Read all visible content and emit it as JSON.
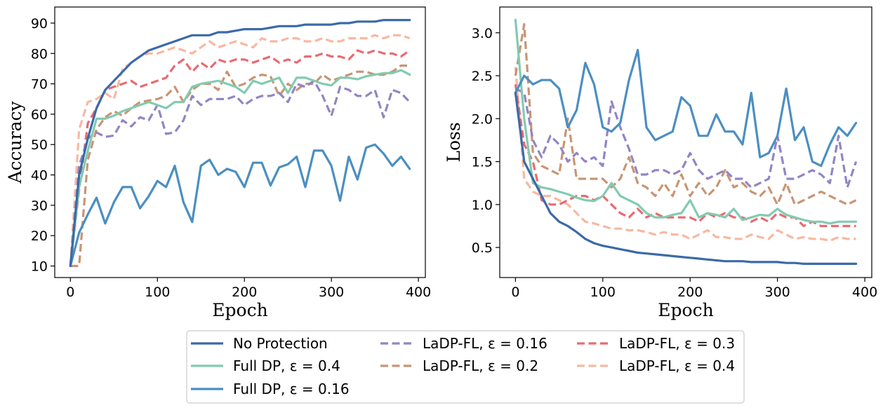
{
  "colors": {
    "no_protection": "#3b6aa8",
    "full_dp_04": "#82cbb1",
    "full_dp_016": "#4b8fc1",
    "ladp_016": "#9285c4",
    "ladp_02": "#c89574",
    "ladp_03": "#e86b71",
    "ladp_04": "#f8b8a0"
  },
  "legend": [
    {
      "label": "No Protection",
      "color": "#3b6aa8",
      "dashed": false
    },
    {
      "label": "Full DP, ε = 0.4",
      "color": "#82cbb1",
      "dashed": false
    },
    {
      "label": "Full DP, ε = 0.16",
      "color": "#4b8fc1",
      "dashed": false
    },
    {
      "label": "LaDP-FL, ε = 0.16",
      "color": "#9285c4",
      "dashed": true
    },
    {
      "label": "LaDP-FL, ε = 0.2",
      "color": "#c89574",
      "dashed": true
    },
    {
      "label": "LaDP-FL, ε = 0.3",
      "color": "#e86b71",
      "dashed": true
    },
    {
      "label": "LaDP-FL, ε = 0.4",
      "color": "#f8b8a0",
      "dashed": true
    }
  ],
  "chart_data": [
    {
      "type": "line",
      "title": "",
      "xlabel": "Epoch",
      "ylabel": "Accuracy",
      "xlim": [
        -18,
        408
      ],
      "ylim": [
        6.2,
        95.3
      ],
      "xticks": [
        0,
        100,
        200,
        300,
        400
      ],
      "yticks": [
        10,
        20,
        30,
        40,
        50,
        60,
        70,
        80,
        90
      ],
      "x": [
        0,
        10,
        20,
        30,
        40,
        50,
        60,
        70,
        80,
        90,
        100,
        110,
        120,
        130,
        140,
        150,
        160,
        170,
        180,
        190,
        200,
        210,
        220,
        230,
        240,
        250,
        260,
        270,
        280,
        290,
        300,
        310,
        320,
        330,
        340,
        350,
        360,
        370,
        380,
        390
      ],
      "series": [
        {
          "name": "No Protection",
          "values": [
            10,
            40,
            52,
            62,
            68,
            71,
            74,
            77,
            79,
            81,
            82,
            83,
            84,
            85,
            86,
            86,
            86,
            87,
            87,
            87.5,
            88,
            88,
            88,
            88.5,
            89,
            89,
            89,
            89.5,
            89.5,
            89.5,
            89.5,
            90,
            90,
            90.5,
            90.5,
            90.5,
            91,
            91,
            91,
            91
          ]
        },
        {
          "name": "Full DP, ε = 0.4",
          "values": [
            10,
            36,
            48,
            58.5,
            58.5,
            59.5,
            61,
            62,
            63,
            64,
            63,
            62,
            64,
            64,
            69,
            70,
            70.5,
            71,
            70,
            69,
            67,
            71,
            70,
            71,
            72,
            67,
            72,
            72,
            71,
            70,
            69.5,
            72,
            72,
            71.5,
            72.5,
            73,
            73.5,
            73.5,
            74.5,
            73
          ]
        },
        {
          "name": "Full DP, ε = 0.16",
          "values": [
            10,
            21,
            27,
            32.5,
            24,
            31,
            36,
            36,
            29,
            33,
            38,
            36,
            43,
            31,
            24.5,
            43,
            45,
            40,
            42,
            41,
            36,
            44,
            44,
            36.5,
            42.5,
            43.5,
            46,
            36,
            48,
            48,
            43,
            31.5,
            46,
            38.5,
            49,
            50,
            47,
            43,
            46,
            42
          ]
        },
        {
          "name": "LaDP-FL, ε = 0.16",
          "values": [
            10,
            43,
            52,
            54,
            52.5,
            53,
            58,
            56,
            59,
            58,
            63,
            53.5,
            54,
            58,
            66,
            63,
            65,
            65,
            65,
            66,
            63,
            65,
            66,
            66,
            67,
            64,
            70,
            69,
            71,
            66,
            59.5,
            69,
            68,
            66,
            66,
            68,
            59,
            68,
            67,
            64
          ]
        },
        {
          "name": "LaDP-FL, ε = 0.2",
          "values": [
            10,
            10,
            45,
            55,
            59,
            61,
            59.5,
            62,
            64,
            64.5,
            65,
            66,
            69,
            64,
            68,
            70,
            70,
            68,
            74,
            69,
            70,
            72,
            73,
            72.5,
            66,
            70,
            68,
            70,
            70,
            73,
            71,
            72,
            73,
            74,
            74,
            73,
            73,
            74,
            76,
            76
          ]
        },
        {
          "name": "LaDP-FL, ε = 0.3",
          "values": [
            10,
            35,
            57,
            62,
            68,
            69,
            70,
            71,
            69,
            70,
            71,
            72,
            76,
            78,
            74,
            77,
            75,
            78,
            77,
            78,
            78,
            77,
            78,
            79,
            77,
            78,
            77,
            79,
            79,
            80,
            79,
            79,
            78,
            81,
            80,
            81,
            80,
            80,
            79,
            81
          ]
        },
        {
          "name": "LaDP-FL, ε = 0.4",
          "values": [
            10,
            55,
            64,
            65,
            67,
            65,
            75,
            77,
            79,
            80,
            80,
            81,
            82,
            81,
            80,
            82,
            84,
            82,
            83,
            84,
            83,
            82,
            85,
            84,
            84,
            85,
            85,
            84,
            84,
            85,
            84,
            84,
            85,
            85,
            85,
            86,
            85,
            86,
            86,
            85
          ]
        }
      ]
    },
    {
      "type": "line",
      "title": "",
      "xlabel": "Epoch",
      "ylabel": "Loss",
      "xlim": [
        -18,
        408
      ],
      "ylim": [
        0.15,
        3.3
      ],
      "xticks": [
        0,
        100,
        200,
        300,
        400
      ],
      "yticks": [
        0.5,
        1.0,
        1.5,
        2.0,
        2.5,
        3.0
      ],
      "ytick_labels": [
        "0.5",
        "1.0",
        "1.5",
        "2.0",
        "2.5",
        "3.0"
      ],
      "x": [
        0,
        10,
        20,
        30,
        40,
        50,
        60,
        70,
        80,
        90,
        100,
        110,
        120,
        130,
        140,
        150,
        160,
        170,
        180,
        190,
        200,
        210,
        220,
        230,
        240,
        250,
        260,
        270,
        280,
        290,
        300,
        310,
        320,
        330,
        340,
        350,
        360,
        370,
        380,
        390
      ],
      "series": [
        {
          "name": "No Protection",
          "values": [
            2.3,
            1.5,
            1.3,
            1.1,
            0.9,
            0.8,
            0.75,
            0.68,
            0.6,
            0.55,
            0.52,
            0.5,
            0.48,
            0.46,
            0.44,
            0.43,
            0.42,
            0.41,
            0.4,
            0.39,
            0.38,
            0.37,
            0.36,
            0.35,
            0.34,
            0.34,
            0.34,
            0.33,
            0.33,
            0.33,
            0.33,
            0.32,
            0.32,
            0.31,
            0.31,
            0.31,
            0.31,
            0.31,
            0.31,
            0.31
          ]
        },
        {
          "name": "Full DP, ε = 0.4",
          "values": [
            3.15,
            2.0,
            1.25,
            1.2,
            1.18,
            1.15,
            1.12,
            1.08,
            1.05,
            1.04,
            1.1,
            1.25,
            1.1,
            1.05,
            1.0,
            0.9,
            0.85,
            0.85,
            0.88,
            0.9,
            1.05,
            0.85,
            0.9,
            0.88,
            0.85,
            0.95,
            0.82,
            0.85,
            0.88,
            0.87,
            0.95,
            0.88,
            0.85,
            0.82,
            0.8,
            0.8,
            0.78,
            0.8,
            0.8,
            0.8
          ]
        },
        {
          "name": "Full DP, ε = 0.16",
          "values": [
            2.3,
            2.5,
            2.4,
            2.45,
            2.45,
            2.35,
            1.9,
            2.1,
            2.65,
            2.4,
            1.9,
            1.85,
            1.95,
            2.45,
            2.8,
            1.9,
            1.75,
            1.8,
            1.85,
            2.25,
            2.15,
            1.8,
            1.8,
            2.05,
            1.85,
            1.85,
            1.7,
            2.3,
            1.55,
            1.6,
            1.8,
            2.35,
            1.75,
            1.9,
            1.5,
            1.45,
            1.7,
            1.9,
            1.8,
            1.95
          ]
        },
        {
          "name": "LaDP-FL, ε = 0.16",
          "values": [
            2.35,
            2.3,
            1.75,
            1.55,
            1.8,
            1.7,
            1.5,
            1.6,
            1.5,
            1.55,
            1.45,
            2.2,
            1.9,
            1.65,
            1.35,
            1.35,
            1.4,
            1.4,
            1.35,
            1.4,
            1.6,
            1.4,
            1.3,
            1.35,
            1.4,
            1.3,
            1.3,
            1.2,
            1.25,
            1.3,
            1.8,
            1.3,
            1.3,
            1.35,
            1.4,
            1.35,
            1.25,
            1.8,
            1.2,
            1.5
          ]
        },
        {
          "name": "LaDP-FL, ε = 0.2",
          "values": [
            2.5,
            3.1,
            1.6,
            1.45,
            1.4,
            1.35,
            2.0,
            1.3,
            1.3,
            1.3,
            1.3,
            1.2,
            1.3,
            1.55,
            1.25,
            1.2,
            1.1,
            1.25,
            1.1,
            1.35,
            1.1,
            1.25,
            1.1,
            1.2,
            1.4,
            1.2,
            1.25,
            1.15,
            1.1,
            1.2,
            1.0,
            1.25,
            1.0,
            1.05,
            1.1,
            1.15,
            1.1,
            1.05,
            1.0,
            1.05
          ]
        },
        {
          "name": "LaDP-FL, ε = 0.3",
          "values": [
            2.4,
            1.7,
            1.5,
            1.05,
            1.0,
            1.0,
            1.05,
            1.1,
            1.1,
            1.05,
            1.1,
            1.0,
            0.9,
            0.85,
            0.95,
            0.85,
            0.9,
            0.85,
            0.85,
            0.85,
            0.85,
            0.8,
            0.9,
            0.85,
            0.9,
            0.85,
            0.85,
            0.8,
            0.85,
            0.8,
            0.9,
            0.85,
            0.85,
            0.75,
            0.8,
            0.75,
            0.75,
            0.75,
            0.75,
            0.75
          ]
        },
        {
          "name": "LaDP-FL, ε = 0.4",
          "values": [
            2.6,
            1.3,
            1.15,
            1.1,
            1.1,
            1.05,
            1.0,
            0.9,
            0.8,
            0.78,
            0.75,
            0.72,
            0.72,
            0.7,
            0.7,
            0.68,
            0.65,
            0.68,
            0.65,
            0.65,
            0.6,
            0.65,
            0.7,
            0.62,
            0.62,
            0.6,
            0.6,
            0.65,
            0.62,
            0.6,
            0.7,
            0.65,
            0.6,
            0.62,
            0.6,
            0.6,
            0.58,
            0.62,
            0.6,
            0.6
          ]
        }
      ]
    }
  ]
}
